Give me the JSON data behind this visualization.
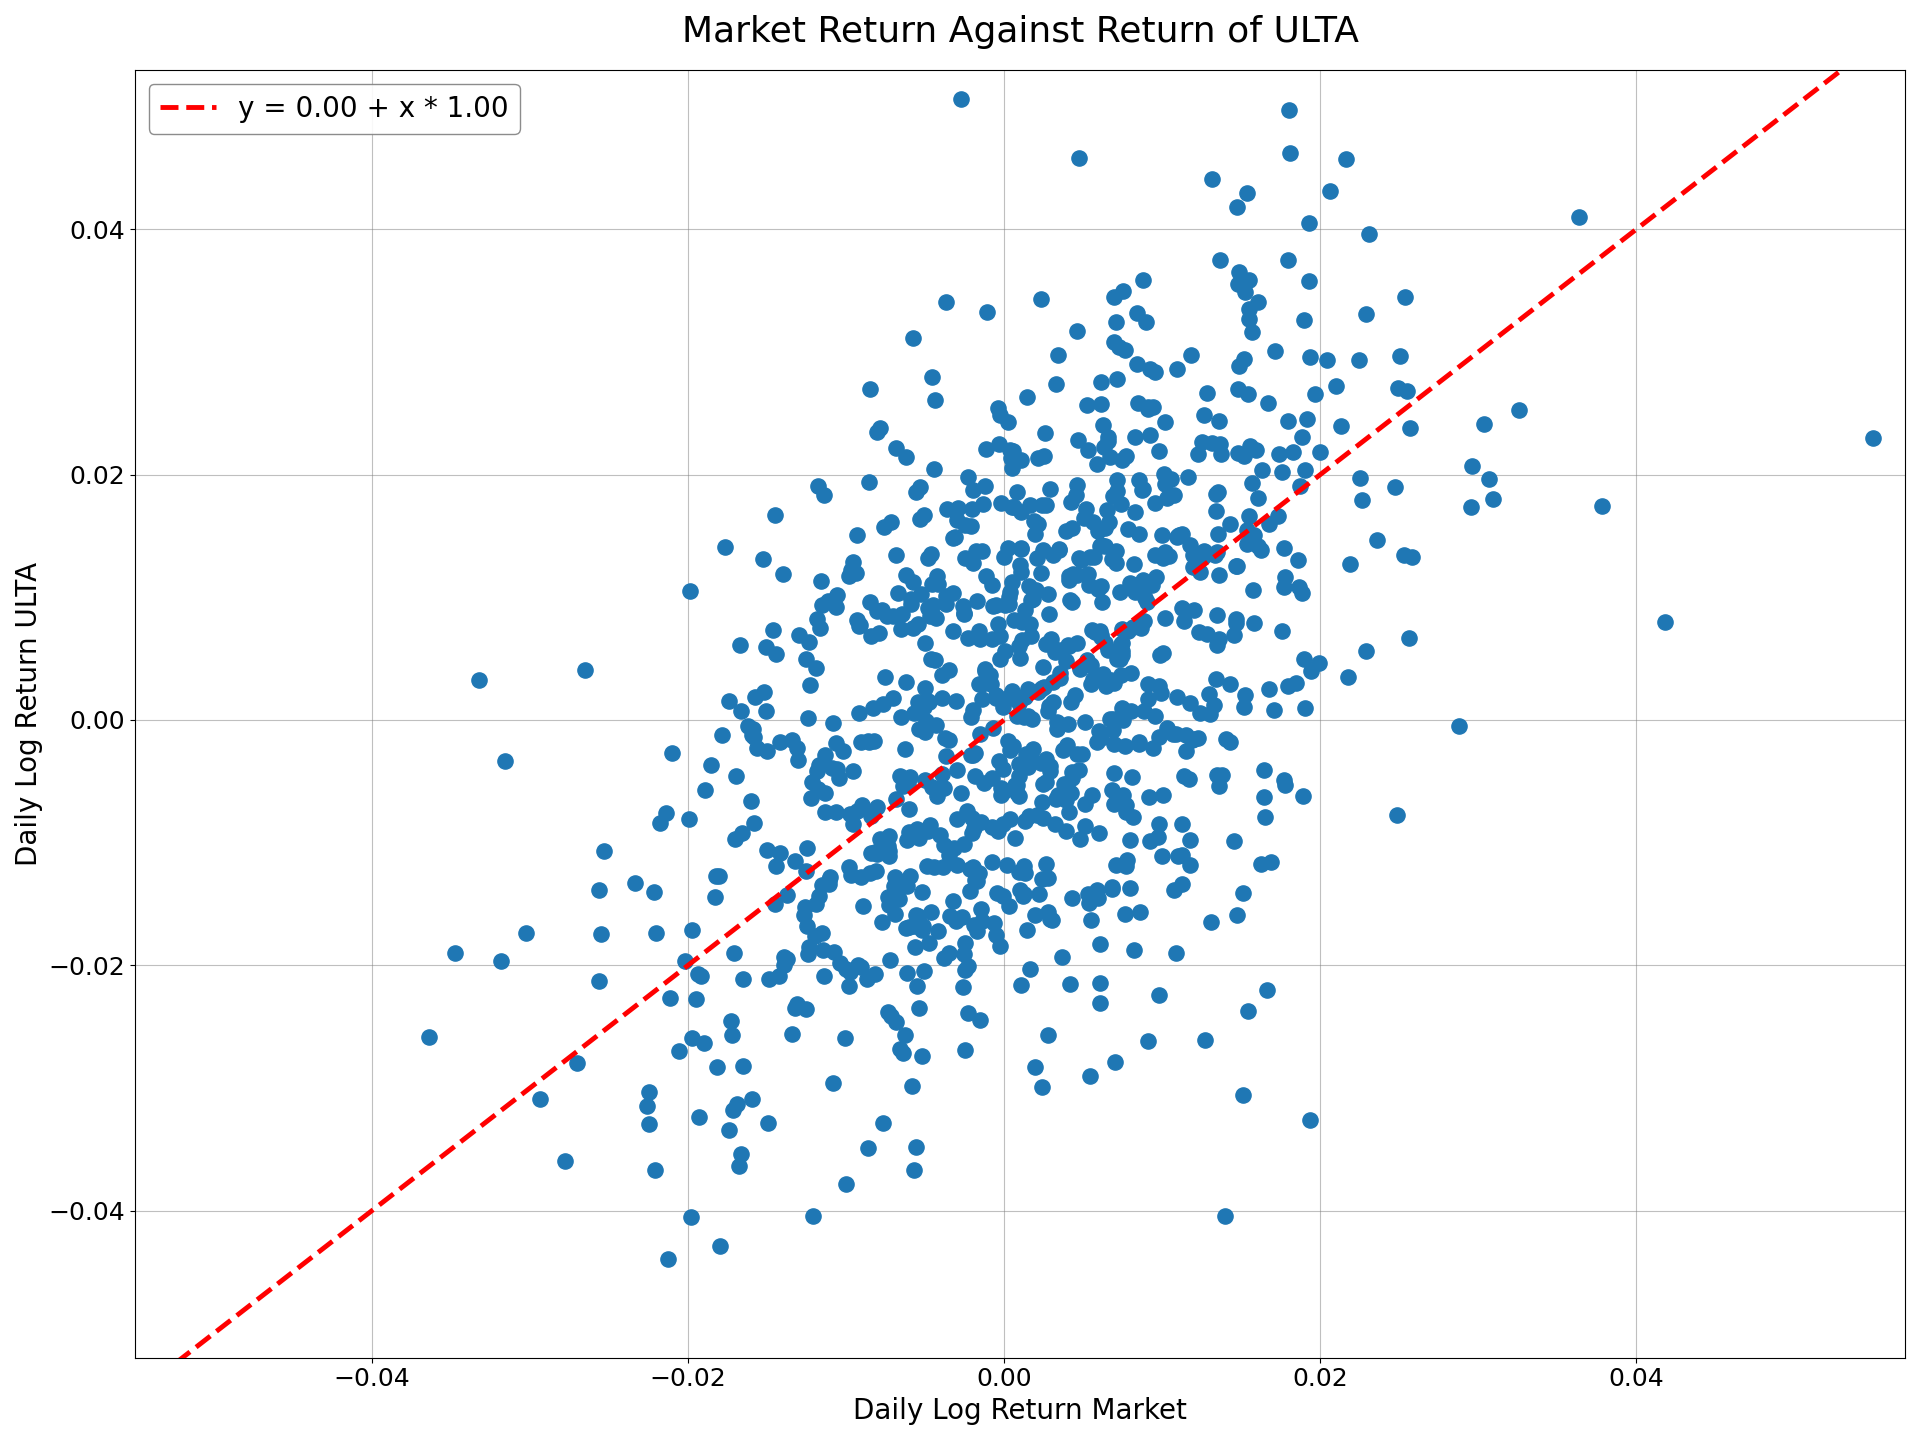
{
  "title": "Market Return Against Return of ULTA",
  "xlabel": "Daily Log Return Market",
  "ylabel": "Daily Log Return ULTA",
  "legend_label": "y = 0.00 + x * 1.00",
  "intercept": 0.0,
  "slope": 1.0,
  "n_points": 1000,
  "xlim": [
    -0.055,
    0.057
  ],
  "ylim": [
    -0.052,
    0.053
  ],
  "dot_color": "#1f77b4",
  "line_color": "#ff0000",
  "dot_size": 120,
  "alpha": 1.0,
  "title_fontsize": 26,
  "label_fontsize": 20,
  "tick_fontsize": 18,
  "legend_fontsize": 20,
  "seed": 17,
  "market_std": 0.011,
  "idio_std": 0.014,
  "beta": 0.8,
  "outlier_x": [
    0.055
  ],
  "outlier_y": [
    0.023
  ]
}
